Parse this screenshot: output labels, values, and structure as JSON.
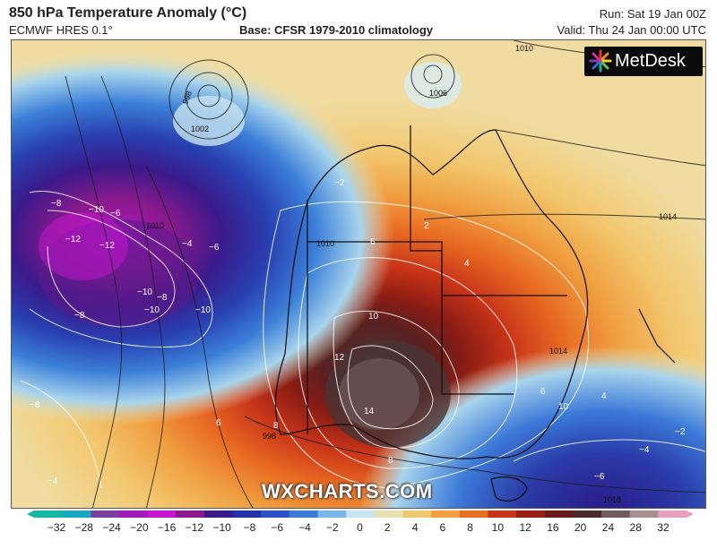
{
  "header": {
    "title": "850 hPa Temperature Anomaly (°C)",
    "model": "ECMWF HRES 0.1°",
    "base": "Base: CFSR 1979-2010 climatology",
    "run": "Run: Sat 19 Jan 00Z",
    "valid": "Valid: Thu 24 Jan 00:00 UTC"
  },
  "logo": {
    "text": "MetDesk",
    "icon": "metdesk-star-icon"
  },
  "watermark": "WXCHARTS.COM",
  "colorbar": {
    "labels": [
      "−32",
      "−28",
      "−24",
      "−20",
      "−16",
      "−12",
      "−10",
      "−8",
      "−6",
      "−4",
      "−2",
      "0",
      "2",
      "4",
      "6",
      "8",
      "10",
      "12",
      "16",
      "20",
      "24",
      "28",
      "32"
    ],
    "colors": [
      "#14b8a0",
      "#1aa8c0",
      "#7a3fa0",
      "#a01ab8",
      "#c814d0",
      "#8a1a8c",
      "#3a1a8a",
      "#2630a8",
      "#2a52c8",
      "#3c7ad8",
      "#7ab6e8",
      "#c8e4f0",
      "#e8e0b0",
      "#f0c870",
      "#f0a040",
      "#e87020",
      "#c83418",
      "#9a1e14",
      "#6a1a1a",
      "#4a2a2a",
      "#705c5c",
      "#a89090",
      "#e8a0c0"
    ]
  },
  "isotherm_labels": [
    "−8",
    "−10",
    "−6",
    "−12",
    "−12",
    "−10",
    "−8",
    "−10",
    "−10",
    "−8",
    "−6",
    "−4",
    "−2",
    "6",
    "8",
    "10",
    "12",
    "14",
    "6",
    "4",
    "2",
    "6",
    "8",
    "10",
    "4",
    "−6",
    "−2",
    "−4",
    "−8",
    "−4"
  ],
  "mslp_labels": [
    "998",
    "1002",
    "1006",
    "1010",
    "1014",
    "1010",
    "1018",
    "998",
    "1010",
    "1014"
  ]
}
